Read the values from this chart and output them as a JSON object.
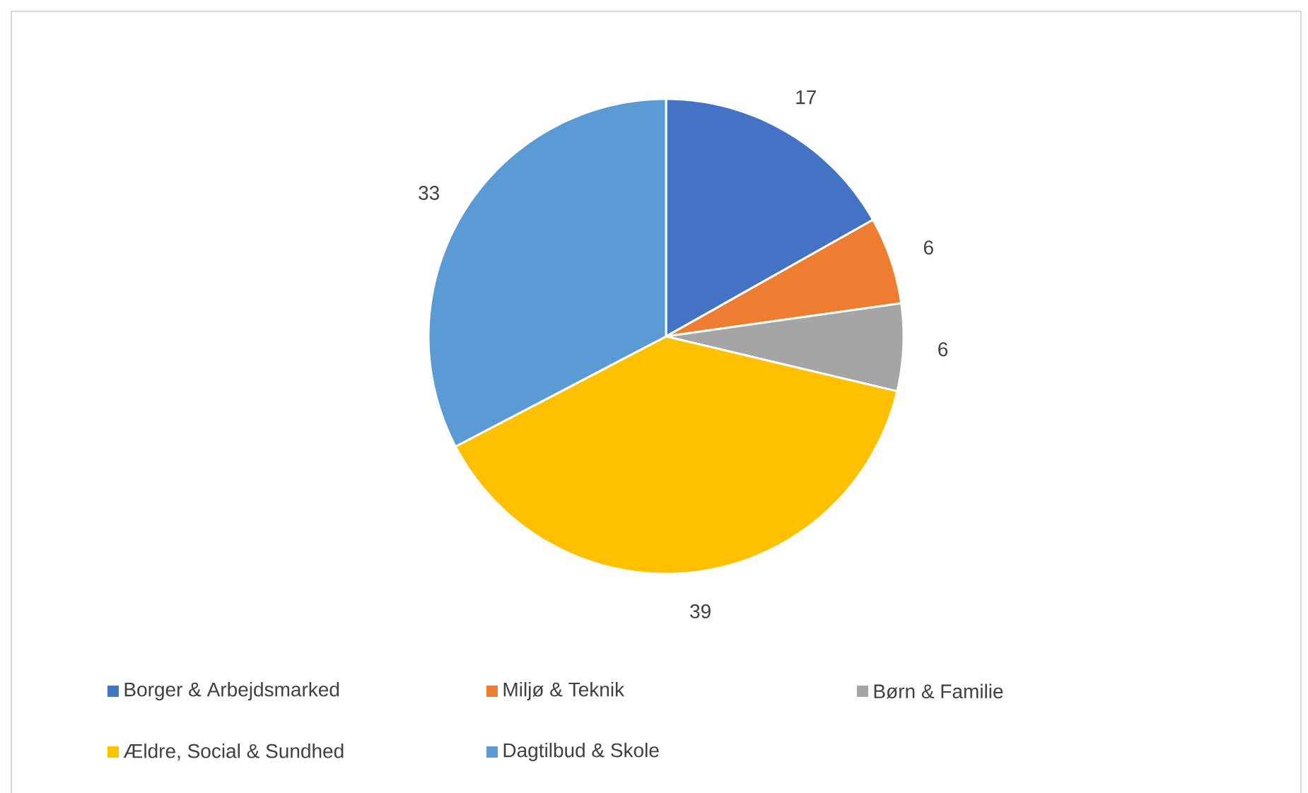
{
  "chart_data": {
    "type": "pie",
    "categories": [
      "Borger & Arbejdsmarked",
      "Miljø & Teknik",
      "Børn & Familie",
      "Ældre, Social & Sundhed",
      "Dagtilbud & Skole"
    ],
    "values": [
      17,
      6,
      6,
      39,
      33
    ],
    "colors": [
      "#4472c4",
      "#ed7d31",
      "#a5a5a5",
      "#ffc000",
      "#5b9bd5"
    ],
    "data_labels": true,
    "legend": "bottom"
  }
}
